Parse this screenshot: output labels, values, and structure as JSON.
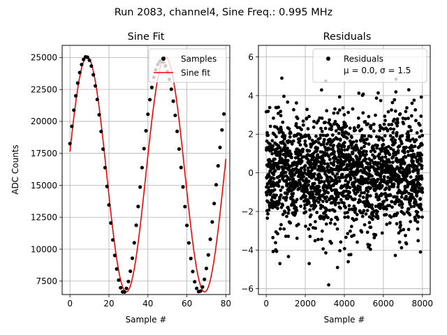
{
  "figure_title": "Run 2083, channel4, Sine Freq.: 0.995 MHz",
  "colors": {
    "fit_line": "#ff0000",
    "points": "#000000",
    "grid": "#b0b0b0"
  },
  "chart_data": [
    {
      "type": "scatter",
      "title": "Sine Fit",
      "xlabel": "Sample #",
      "ylabel": "ADC Counts",
      "xlim": [
        -4,
        82
      ],
      "ylim": [
        6450,
        25950
      ],
      "xticks": [
        0,
        20,
        40,
        60,
        80
      ],
      "yticks": [
        7500,
        10000,
        12500,
        15000,
        17500,
        20000,
        22500,
        25000
      ],
      "grid": true,
      "legend": {
        "placement": "top-right",
        "entries": [
          "Samples",
          "Sine fit"
        ]
      },
      "series": [
        {
          "name": "Samples",
          "kind": "points",
          "x": [
            0,
            1,
            2,
            3,
            4,
            5,
            6,
            7,
            8,
            9,
            10,
            11,
            12,
            13,
            14,
            15,
            16,
            17,
            18,
            19,
            20,
            21,
            22,
            23,
            24,
            25,
            26,
            27,
            28,
            29,
            30,
            31,
            32,
            33,
            34,
            35,
            36,
            37,
            38,
            39,
            40,
            41,
            42,
            43,
            44,
            45,
            46,
            47,
            48,
            49,
            50,
            51,
            52,
            53,
            54,
            55,
            56,
            57,
            58,
            59,
            60,
            61,
            62,
            63,
            64,
            65,
            66,
            67,
            68,
            69,
            70,
            71,
            72,
            73,
            74,
            75,
            76,
            77,
            78,
            79
          ],
          "y": [
            18260,
            19610,
            20880,
            22000,
            23000,
            23820,
            24450,
            24850,
            25050,
            25020,
            24780,
            24330,
            23650,
            22780,
            21720,
            20520,
            19210,
            17830,
            16380,
            14910,
            13460,
            12050,
            10720,
            9510,
            8450,
            7580,
            6980,
            6660,
            6650,
            6930,
            7470,
            8270,
            9290,
            10500,
            11870,
            13340,
            14860,
            16380,
            17870,
            19270,
            20560,
            21700,
            22660,
            23440,
            24040,
            24450,
            24680,
            24740,
            24630,
            24340,
            23900,
            23290,
            22520,
            21580,
            20470,
            19220,
            17840,
            16390,
            14870,
            13330,
            11860,
            10490,
            9270,
            8250,
            7450,
            6930,
            6680,
            6720,
            7040,
            7640,
            8490,
            9550,
            10780,
            12130,
            13570,
            15040,
            16520,
            17960,
            19330,
            20580
          ]
        },
        {
          "name": "Sine fit",
          "kind": "line",
          "amplitude": 9200,
          "offset": 15850,
          "period": 40.2,
          "phase_peak_x": 8.8,
          "x_range": [
            0,
            80
          ]
        }
      ]
    },
    {
      "type": "scatter",
      "title": "Residuals",
      "xlabel": "Sample #",
      "ylabel": "",
      "xlim": [
        -400,
        8400
      ],
      "ylim": [
        -6.3,
        6.6
      ],
      "xticks": [
        0,
        2000,
        4000,
        6000,
        8000
      ],
      "yticks": [
        -6,
        -4,
        -2,
        0,
        2,
        4,
        6
      ],
      "grid": true,
      "legend": {
        "placement": "top-right",
        "entries": [
          "Residuals",
          "μ = 0.0, σ = 1.5"
        ]
      },
      "series": [
        {
          "name": "Residuals",
          "kind": "points",
          "n_points": 8000,
          "x_range": [
            0,
            8000
          ],
          "mean": 0.0,
          "std": 1.5,
          "outliers": [
            [
              3200,
              -5.8
            ],
            [
              800,
              4.9
            ],
            [
              3050,
              4.75
            ],
            [
              700,
              -4.7
            ],
            [
              2200,
              -4.7
            ],
            [
              3650,
              -4.9
            ],
            [
              4200,
              -4.6
            ],
            [
              6650,
              4.85
            ],
            [
              7900,
              -4.1
            ],
            [
              7300,
              4.3
            ]
          ]
        }
      ]
    }
  ]
}
